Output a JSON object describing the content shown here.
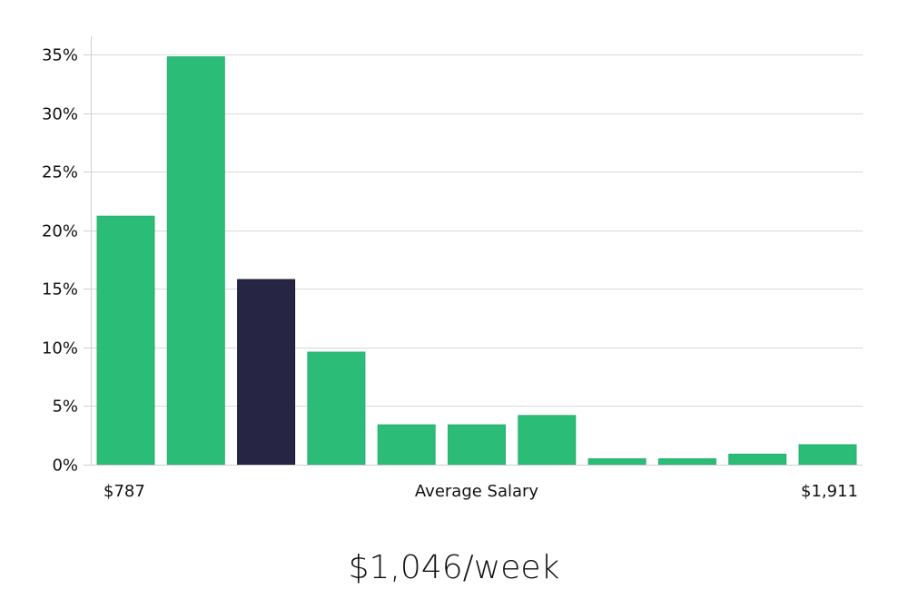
{
  "chart_data": {
    "type": "bar",
    "categories": [
      "1",
      "2",
      "3",
      "4",
      "5",
      "6",
      "7",
      "8",
      "9",
      "10",
      "11"
    ],
    "values": [
      21.2,
      34.8,
      15.8,
      9.6,
      3.4,
      3.4,
      4.2,
      0.5,
      0.5,
      0.9,
      1.7
    ],
    "highlight_index": 2,
    "y_ticks": [
      0,
      5,
      10,
      15,
      20,
      25,
      30,
      35
    ],
    "y_tick_labels": [
      "0%",
      "5%",
      "10%",
      "15%",
      "20%",
      "25%",
      "30%",
      "35%"
    ],
    "ylim": [
      0,
      35
    ],
    "x_left_label": "$787",
    "x_center_label": "Average Salary",
    "x_right_label": "$1,911",
    "grid": true,
    "colors": {
      "bar": "#2bbd77",
      "highlight": "#262544",
      "grid": "#d9d9d9"
    }
  },
  "summary": {
    "value": "$1,046/week"
  }
}
